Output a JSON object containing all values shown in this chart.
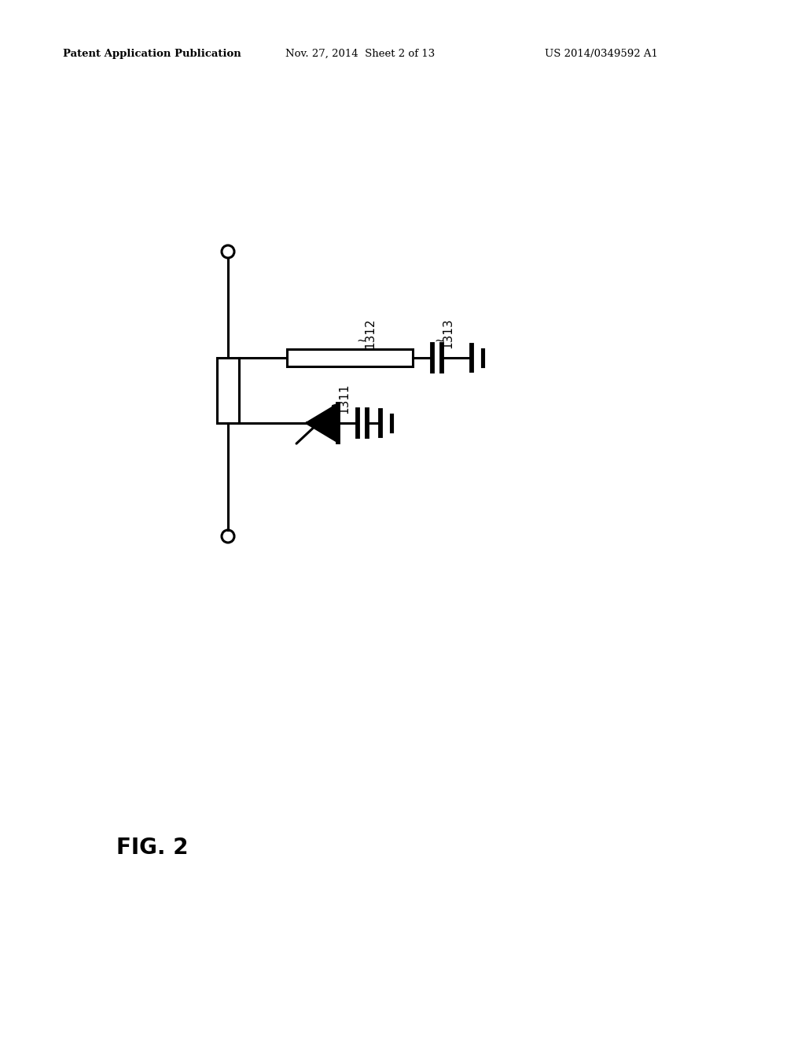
{
  "header_left": "Patent Application Publication",
  "header_middle": "Nov. 27, 2014  Sheet 2 of 13",
  "header_right": "US 2014/0349592 A1",
  "fig_label": "FIG. 2",
  "label_1311": "1311",
  "label_1312": "1312",
  "label_1313": "1313",
  "background_color": "#ffffff",
  "line_color": "#000000",
  "lw": 2.2
}
